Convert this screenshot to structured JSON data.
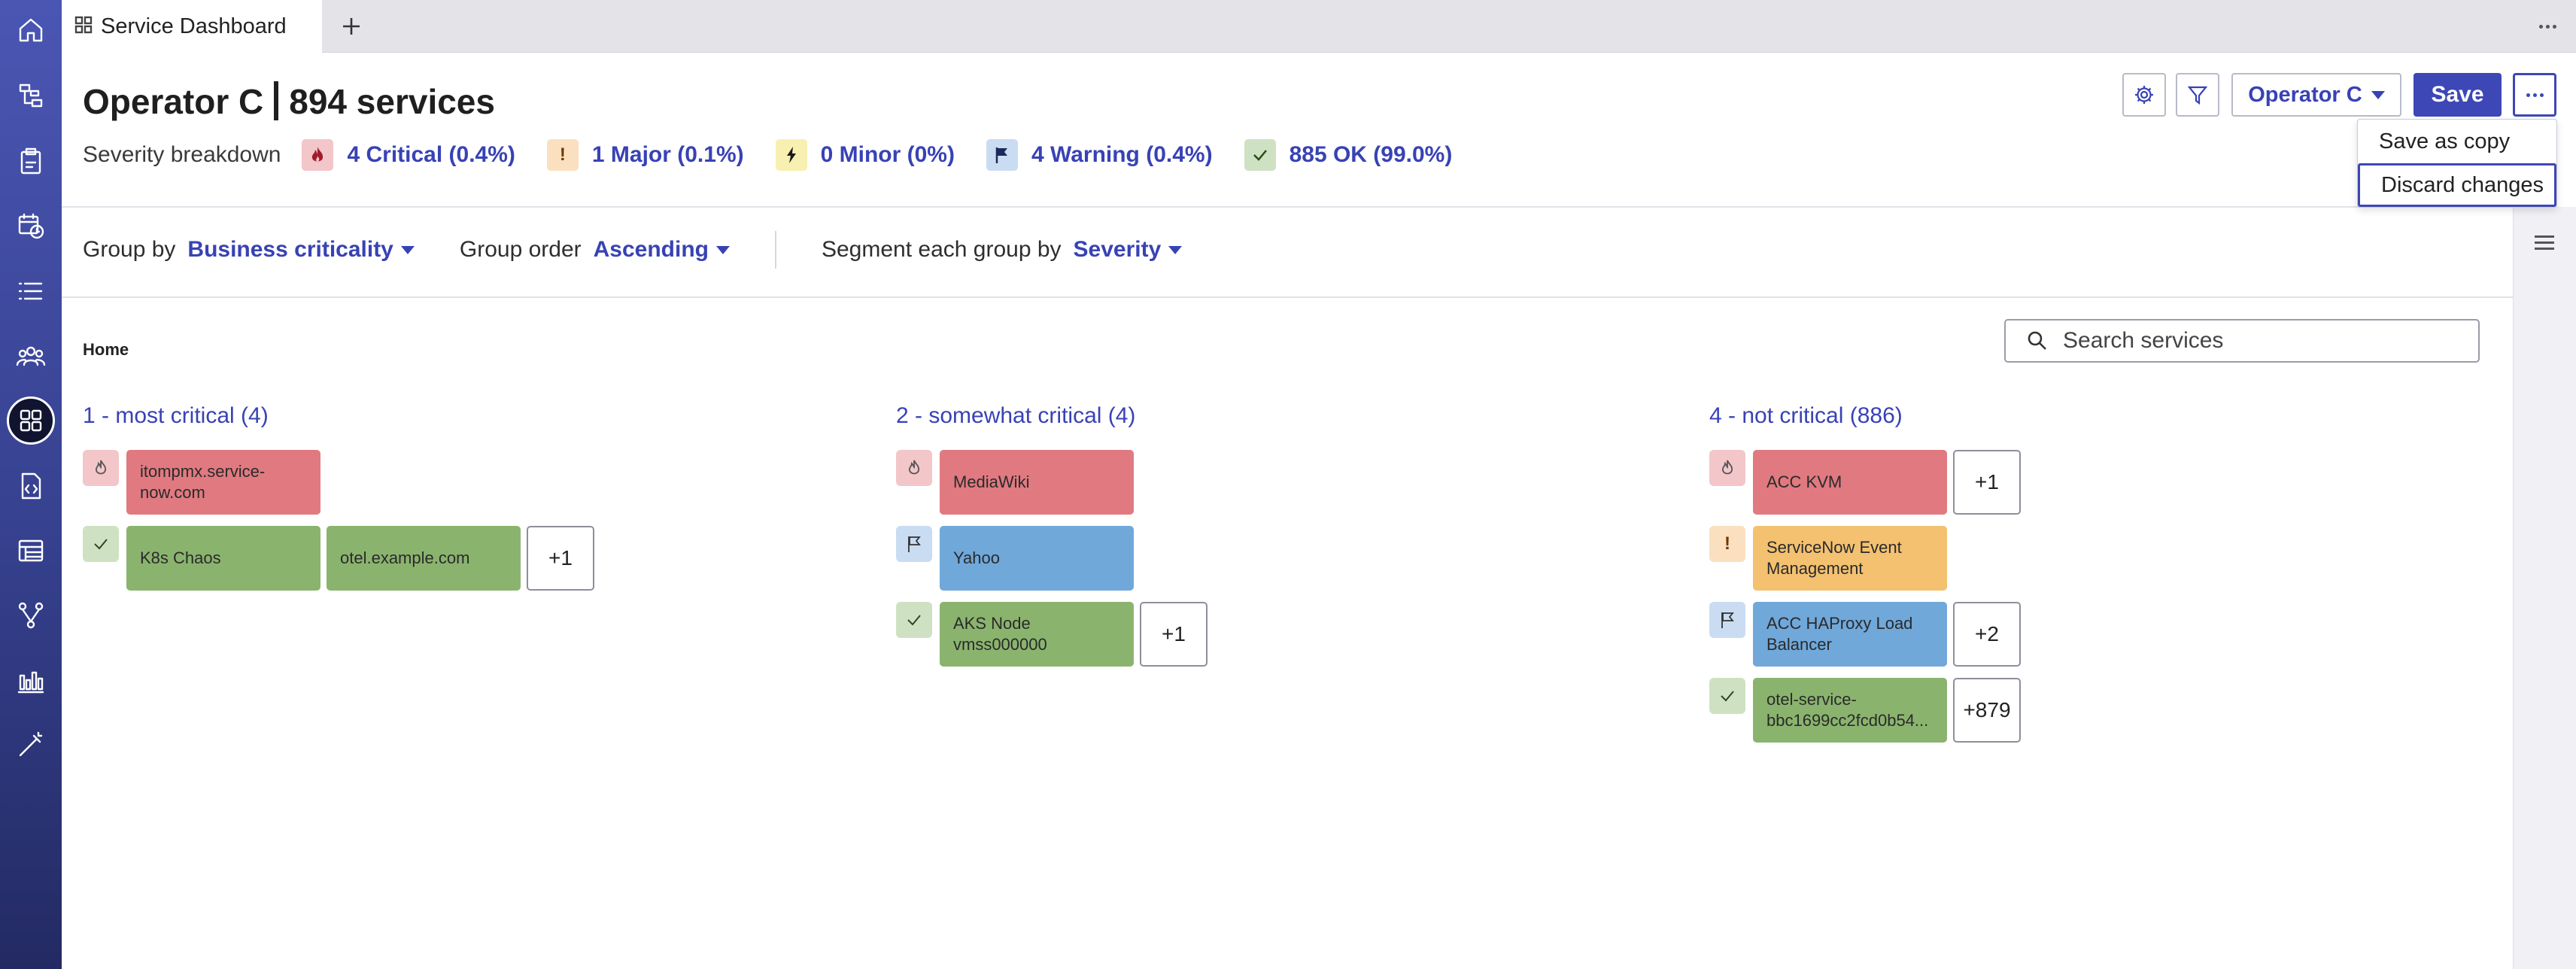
{
  "tab": {
    "label": "Service Dashboard",
    "icon": "grid-icon",
    "add_icon": "plus-icon"
  },
  "nav": {
    "items": [
      {
        "name": "home-icon"
      },
      {
        "name": "flow-icon"
      },
      {
        "name": "clipboard-icon"
      },
      {
        "name": "calendar-clock-icon"
      },
      {
        "name": "list-icon"
      },
      {
        "name": "users-icon"
      },
      {
        "name": "dashboard-grid-icon",
        "active": true
      },
      {
        "name": "code-file-icon"
      },
      {
        "name": "table-icon"
      },
      {
        "name": "branch-icon"
      },
      {
        "name": "bar-chart-icon"
      },
      {
        "name": "wand-icon"
      }
    ]
  },
  "header": {
    "operator": "Operator C",
    "services": "894 services",
    "severity_label": "Severity breakdown",
    "severity": [
      {
        "key": "critical",
        "text": "4 Critical (0.4%)",
        "icon": "flame-icon"
      },
      {
        "key": "major",
        "text": "1 Major (0.1%)",
        "icon": "exclamation-icon",
        "glyph": "!"
      },
      {
        "key": "minor",
        "text": "0 Minor (0%)",
        "icon": "bolt-icon"
      },
      {
        "key": "warning",
        "text": "4 Warning (0.4%)",
        "icon": "flag-icon"
      },
      {
        "key": "ok",
        "text": "885 OK (99.0%)",
        "icon": "check-icon"
      }
    ],
    "operator_button": "Operator C",
    "save_button": "Save"
  },
  "menu": {
    "items": [
      "Save as copy",
      "Discard changes"
    ],
    "focused": "Discard changes"
  },
  "controls": {
    "group_by_label": "Group by",
    "group_by_value": "Business criticality",
    "group_order_label": "Group order",
    "group_order_value": "Ascending",
    "segment_label": "Segment each group by",
    "segment_value": "Severity"
  },
  "breadcrumb": "Home",
  "search": {
    "placeholder": "Search services"
  },
  "groups": [
    {
      "title": "1 - most critical (4)",
      "rows": [
        {
          "severity": "critical",
          "tiles": [
            "itompmx.service-now.com"
          ],
          "more": null
        },
        {
          "severity": "ok",
          "tiles": [
            "K8s Chaos",
            "otel.example.com"
          ],
          "more": "+1"
        }
      ]
    },
    {
      "title": "2 - somewhat critical (4)",
      "rows": [
        {
          "severity": "critical",
          "tiles": [
            "MediaWiki"
          ],
          "more": null
        },
        {
          "severity": "warning",
          "tiles": [
            "Yahoo"
          ],
          "more": null
        },
        {
          "severity": "ok",
          "tiles": [
            "AKS Node vmss000000"
          ],
          "more": "+1"
        }
      ]
    },
    {
      "title": "4 - not critical (886)",
      "rows": [
        {
          "severity": "critical",
          "tiles": [
            "ACC KVM"
          ],
          "more": "+1"
        },
        {
          "severity": "major",
          "tiles": [
            "ServiceNow Event Management"
          ],
          "more": null
        },
        {
          "severity": "warning",
          "tiles": [
            "ACC HAProxy Load Balancer"
          ],
          "more": "+2"
        },
        {
          "severity": "ok",
          "tiles": [
            "otel-service-bbc1699cc2fcd0b54..."
          ],
          "more": "+879"
        }
      ]
    }
  ],
  "colors": {
    "accent": "#3842b5",
    "critical": "#e07a80",
    "major": "#f3c170",
    "warning": "#70a8da",
    "ok": "#8ab46e"
  }
}
